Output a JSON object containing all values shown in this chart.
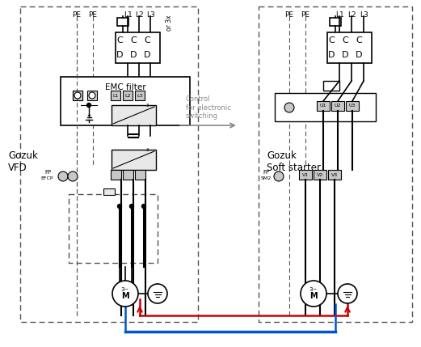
{
  "bg_color": "#ffffff",
  "line_color": "#000000",
  "dash_color": "#555555",
  "red_color": "#cc0000",
  "blue_color": "#0055cc",
  "gray_color": "#888888",
  "text_color": "#000000",
  "label_vfd": "Gozuk\nVFD",
  "label_soft": "Gozuk\nSoft starter",
  "label_emc": "EMC filter",
  "label_control": "Control\nfor electronic\nswitching",
  "label_pe1": "PE",
  "label_pe2": "PE",
  "label_l1": "L1",
  "label_l2": "L2",
  "label_l3": "L3",
  "label_or3x": "or 3x",
  "figsize": [
    5.21,
    4.29
  ],
  "dpi": 100
}
